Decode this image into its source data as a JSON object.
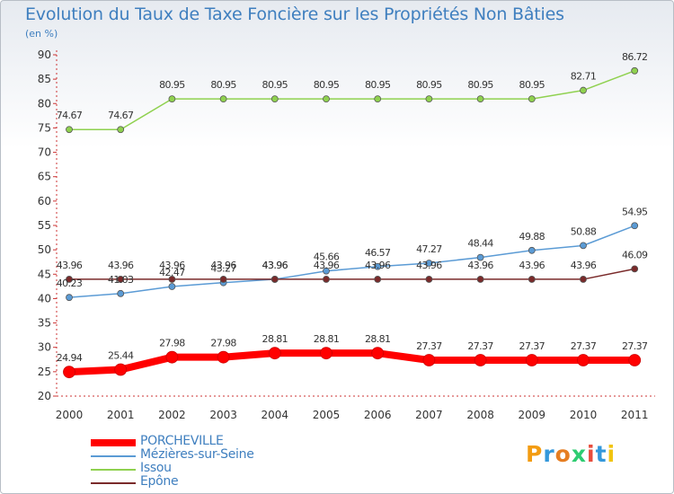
{
  "title": "Evolution du Taux de Taxe Foncière sur les Propriétés Non Bâties",
  "subtitle": "(en %)",
  "logo": "Proxiti",
  "chart_data": {
    "type": "line",
    "x": [
      "2000",
      "2001",
      "2002",
      "2003",
      "2004",
      "2005",
      "2006",
      "2007",
      "2008",
      "2009",
      "2010",
      "2011"
    ],
    "ylim": [
      20,
      90
    ],
    "yticks": [
      20,
      25,
      30,
      35,
      40,
      45,
      50,
      55,
      60,
      65,
      70,
      75,
      80,
      85,
      90
    ],
    "grid": false,
    "legend_position": "bottom-left",
    "series": [
      {
        "name": "PORCHEVILLE",
        "color": "#ff0000",
        "width": 8,
        "values": [
          24.94,
          25.44,
          27.98,
          27.98,
          28.81,
          28.81,
          28.81,
          27.37,
          27.37,
          27.37,
          27.37,
          27.37
        ],
        "labels": [
          "24.94",
          "25.44",
          "27.98",
          "27.98",
          "28.81",
          "28.81",
          "28.81",
          "27.37",
          "27.37",
          "27.37",
          "27.37",
          "27.37"
        ]
      },
      {
        "name": "Mézières-sur-Seine",
        "color": "#5b9bd5",
        "width": 1.5,
        "values": [
          40.23,
          41.03,
          42.47,
          43.27,
          43.96,
          45.66,
          46.57,
          47.27,
          48.44,
          49.88,
          50.88,
          54.95
        ],
        "labels": [
          "40.23",
          "41.03",
          "42.47",
          "43.27",
          "43.96",
          "45.66",
          "46.57",
          "47.27",
          "48.44",
          "49.88",
          "50.88",
          "54.95"
        ]
      },
      {
        "name": "Issou",
        "color": "#8fd14f",
        "width": 1.5,
        "values": [
          74.67,
          74.67,
          80.95,
          80.95,
          80.95,
          80.95,
          80.95,
          80.95,
          80.95,
          80.95,
          82.71,
          86.72
        ],
        "labels": [
          "74.67",
          "74.67",
          "80.95",
          "80.95",
          "80.95",
          "80.95",
          "80.95",
          "80.95",
          "80.95",
          "80.95",
          "82.71",
          "86.72"
        ]
      },
      {
        "name": "Epône",
        "color": "#7a2a2a",
        "width": 1.5,
        "values": [
          43.96,
          43.96,
          43.96,
          43.96,
          43.96,
          43.96,
          43.96,
          43.96,
          43.96,
          43.96,
          43.96,
          46.09
        ],
        "labels": [
          "43.96",
          "43.96",
          "43.96",
          "43.96",
          "43.96",
          "43.96",
          "43.96",
          "43.96",
          "43.96",
          "43.96",
          "43.96",
          "46.09"
        ]
      }
    ]
  }
}
